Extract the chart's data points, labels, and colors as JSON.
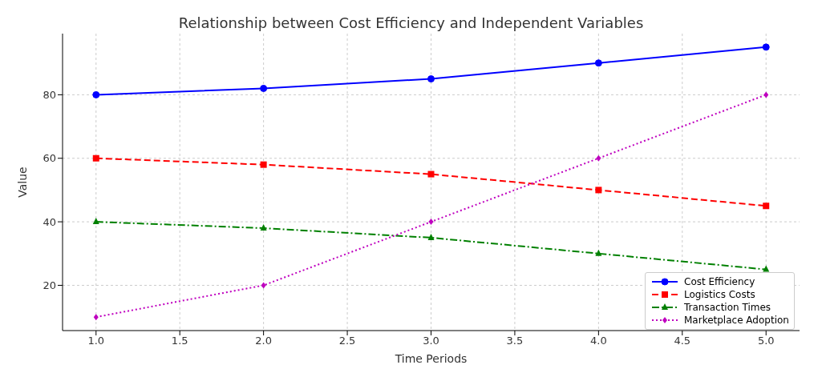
{
  "chart_data": {
    "type": "line",
    "title": "Relationship between Cost Efficiency and Independent Variables",
    "xlabel": "Time Periods",
    "ylabel": "Value",
    "x": [
      1,
      2,
      3,
      4,
      5
    ],
    "series": [
      {
        "name": "Cost Efficiency",
        "color": "#0000ff",
        "values": [
          80,
          82,
          85,
          90,
          95
        ],
        "marker": "circle",
        "line_style": "solid"
      },
      {
        "name": "Logistics Costs",
        "color": "#ff0000",
        "values": [
          60,
          58,
          55,
          50,
          45
        ],
        "marker": "square",
        "line_style": "dashed"
      },
      {
        "name": "Transaction Times",
        "color": "#008000",
        "values": [
          40,
          38,
          35,
          30,
          25
        ],
        "marker": "triangle",
        "line_style": "dashdot"
      },
      {
        "name": "Marketplace Adoption",
        "color": "#bf00bf",
        "values": [
          10,
          20,
          40,
          60,
          80
        ],
        "marker": "diamond",
        "line_style": "dotted"
      }
    ],
    "xlim": [
      0.8,
      5.2
    ],
    "xticks": [
      {
        "value": 1,
        "label": "1.0"
      },
      {
        "value": 1.5,
        "label": "1.5"
      },
      {
        "value": 2,
        "label": "2.0"
      },
      {
        "value": 2.5,
        "label": "2.5"
      },
      {
        "value": 3,
        "label": "3.0"
      },
      {
        "value": 3.5,
        "label": "3.5"
      },
      {
        "value": 4,
        "label": "4.0"
      },
      {
        "value": 4.5,
        "label": "4.5"
      },
      {
        "value": 5,
        "label": "5.0"
      }
    ],
    "ylim": [
      5.75,
      99.25
    ],
    "yticks": [
      20,
      40,
      60,
      80
    ],
    "grid": true,
    "legend": "bottom right"
  }
}
